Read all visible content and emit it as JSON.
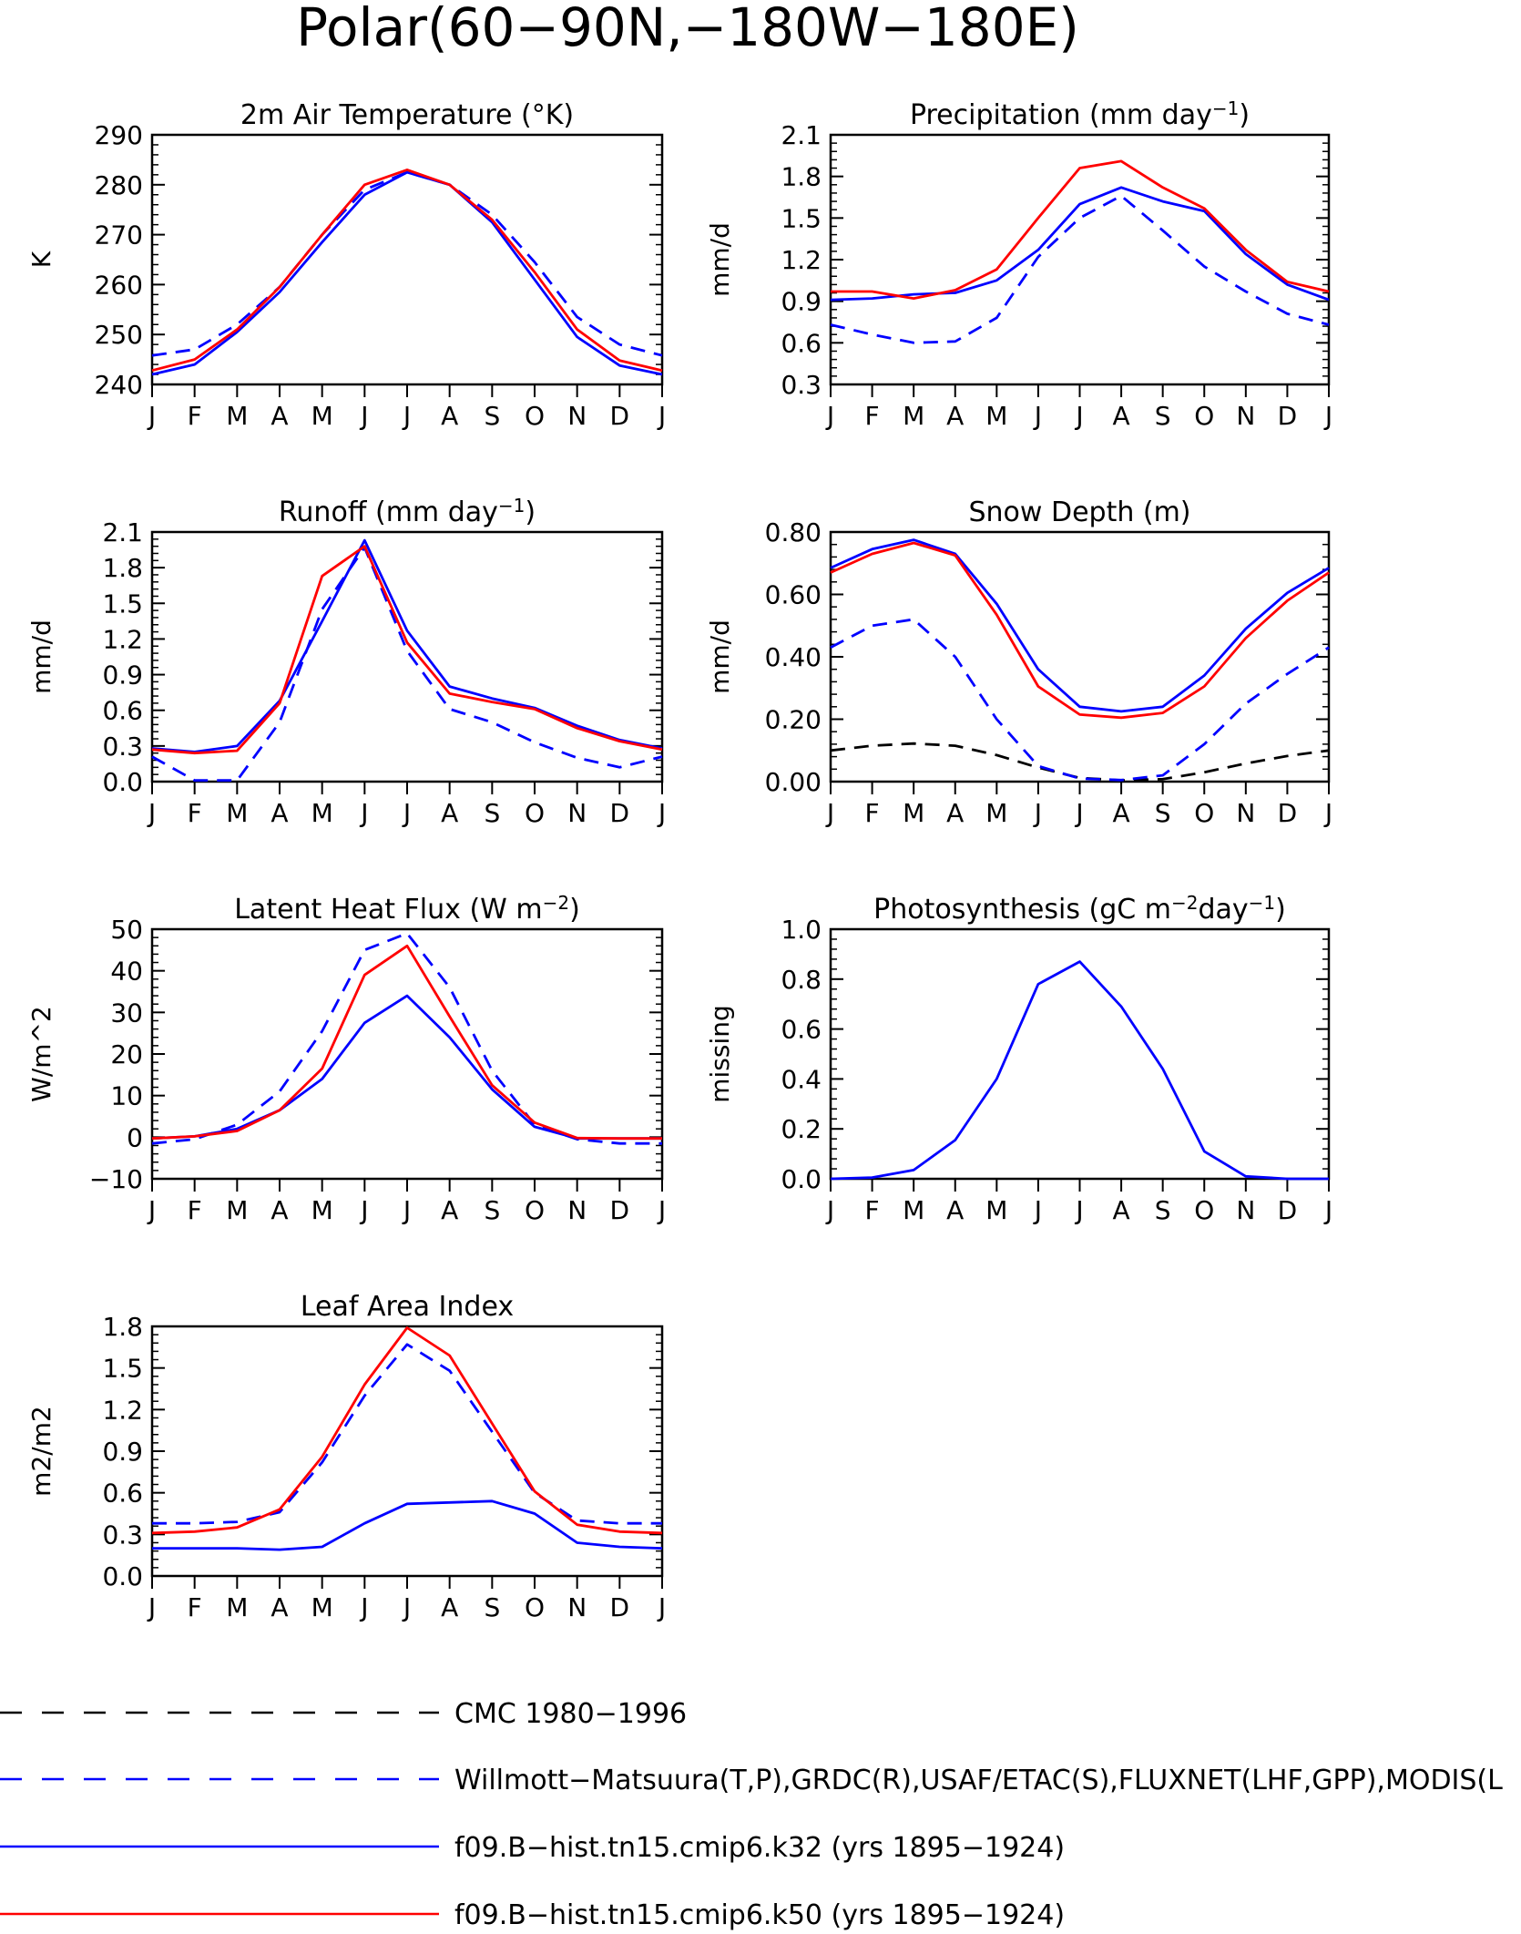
{
  "figure": {
    "title": "Polar(60−90N,−180W−180E)",
    "month_labels": [
      "J",
      "F",
      "M",
      "A",
      "M",
      "J",
      "J",
      "A",
      "S",
      "O",
      "N",
      "D",
      "J"
    ]
  },
  "legend": [
    {
      "label": "CMC 1980−1996",
      "color": "#000000",
      "dash": true
    },
    {
      "label": "Willmott−Matsuura(T,P),GRDC(R),USAF/ETAC(S),FLUXNET(LHF,GPP),MODIS(L",
      "color": "#0000ff",
      "dash": true
    },
    {
      "label": "f09.B−hist.tn15.cmip6.k32 (yrs 1895−1924)",
      "color": "#0000ff",
      "dash": false
    },
    {
      "label": "f09.B−hist.tn15.cmip6.k50 (yrs 1895−1924)",
      "color": "#ff0000",
      "dash": false
    }
  ],
  "chart_data": [
    {
      "type": "line",
      "title": "2m Air Temperature (°K)",
      "ylabel": "K",
      "ylim": [
        240,
        290
      ],
      "yticks": [
        240,
        250,
        260,
        270,
        280,
        290
      ],
      "ytick_labels": [
        "240",
        "250",
        "260",
        "270",
        "280",
        "290"
      ],
      "x": [
        "J",
        "F",
        "M",
        "A",
        "M",
        "J",
        "J",
        "A",
        "S",
        "O",
        "N",
        "D",
        "J"
      ],
      "series": [
        {
          "name": "Willmott−Matsuura(T,P),GRDC(R),USAF/ETAC(S),FLUXNET(LHF,GPP),MODIS(L",
          "color": "#0000ff",
          "dash": true,
          "values": [
            245.8,
            247.0,
            252.0,
            259.5,
            270.0,
            279.0,
            282.5,
            280.0,
            274.0,
            264.5,
            253.5,
            248.0,
            245.8
          ]
        },
        {
          "name": "f09.B−hist.tn15.cmip6.k32 (yrs 1895−1924)",
          "color": "#0000ff",
          "dash": false,
          "values": [
            242.0,
            244.0,
            250.5,
            258.5,
            268.5,
            278.0,
            282.5,
            280.0,
            272.5,
            261.0,
            249.5,
            243.8,
            242.0
          ]
        },
        {
          "name": "f09.B−hist.tn15.cmip6.k50 (yrs 1895−1924)",
          "color": "#ff0000",
          "dash": false,
          "values": [
            242.8,
            245.0,
            251.0,
            259.5,
            270.0,
            280.0,
            283.0,
            280.0,
            273.0,
            262.5,
            251.0,
            244.8,
            242.8
          ]
        }
      ]
    },
    {
      "type": "line",
      "title": "Precipitation (mm day",
      "title_sup": "−1",
      "title_end": ")",
      "ylabel": "mm/d",
      "ylim": [
        0.3,
        2.1
      ],
      "yticks": [
        0.3,
        0.6,
        0.9,
        1.2,
        1.5,
        1.8,
        2.1
      ],
      "ytick_labels": [
        "0.3",
        "0.6",
        "0.9",
        "1.2",
        "1.5",
        "1.8",
        "2.1"
      ],
      "x": [
        "J",
        "F",
        "M",
        "A",
        "M",
        "J",
        "J",
        "A",
        "S",
        "O",
        "N",
        "D",
        "J"
      ],
      "series": [
        {
          "name": "Willmott−Matsuura(T,P),GRDC(R),USAF/ETAC(S),FLUXNET(LHF,GPP),MODIS(L",
          "color": "#0000ff",
          "dash": true,
          "values": [
            0.73,
            0.66,
            0.6,
            0.61,
            0.78,
            1.22,
            1.5,
            1.66,
            1.41,
            1.15,
            0.97,
            0.81,
            0.73
          ]
        },
        {
          "name": "f09.B−hist.tn15.cmip6.k32 (yrs 1895−1924)",
          "color": "#0000ff",
          "dash": false,
          "values": [
            0.91,
            0.92,
            0.95,
            0.96,
            1.05,
            1.27,
            1.6,
            1.72,
            1.62,
            1.55,
            1.24,
            1.02,
            0.91
          ]
        },
        {
          "name": "f09.B−hist.tn15.cmip6.k50 (yrs 1895−1924)",
          "color": "#ff0000",
          "dash": false,
          "values": [
            0.97,
            0.97,
            0.92,
            0.98,
            1.13,
            1.5,
            1.86,
            1.91,
            1.72,
            1.57,
            1.27,
            1.04,
            0.97
          ]
        }
      ]
    },
    {
      "type": "line",
      "title": "Runoff (mm day",
      "title_sup": "−1",
      "title_end": ")",
      "ylabel": "mm/d",
      "ylim": [
        0.0,
        2.1
      ],
      "yticks": [
        0.0,
        0.3,
        0.6,
        0.9,
        1.2,
        1.5,
        1.8,
        2.1
      ],
      "ytick_labels": [
        "0.0",
        "0.3",
        "0.6",
        "0.9",
        "1.2",
        "1.5",
        "1.8",
        "2.1"
      ],
      "x": [
        "J",
        "F",
        "M",
        "A",
        "M",
        "J",
        "J",
        "A",
        "S",
        "O",
        "N",
        "D",
        "J"
      ],
      "series": [
        {
          "name": "Willmott−Matsuura(T,P),GRDC(R),USAF/ETAC(S),FLUXNET(LHF,GPP),MODIS(L",
          "color": "#0000ff",
          "dash": true,
          "values": [
            0.21,
            0.01,
            0.01,
            0.5,
            1.45,
            1.97,
            1.1,
            0.61,
            0.5,
            0.33,
            0.2,
            0.12,
            0.21
          ]
        },
        {
          "name": "f09.B−hist.tn15.cmip6.k32 (yrs 1895−1924)",
          "color": "#0000ff",
          "dash": false,
          "values": [
            0.28,
            0.25,
            0.3,
            0.68,
            1.35,
            2.03,
            1.27,
            0.8,
            0.7,
            0.62,
            0.47,
            0.35,
            0.28
          ]
        },
        {
          "name": "f09.B−hist.tn15.cmip6.k50 (yrs 1895−1924)",
          "color": "#ff0000",
          "dash": false,
          "values": [
            0.27,
            0.24,
            0.26,
            0.66,
            1.73,
            1.98,
            1.17,
            0.74,
            0.67,
            0.61,
            0.45,
            0.34,
            0.27
          ]
        }
      ]
    },
    {
      "type": "line",
      "title": "Snow Depth (m)",
      "ylabel": "mm/d",
      "ylim": [
        0.0,
        0.8
      ],
      "yticks": [
        0.0,
        0.2,
        0.4,
        0.6,
        0.8
      ],
      "ytick_labels": [
        "0.00",
        "0.20",
        "0.40",
        "0.60",
        "0.80"
      ],
      "x": [
        "J",
        "F",
        "M",
        "A",
        "M",
        "J",
        "J",
        "A",
        "S",
        "O",
        "N",
        "D",
        "J"
      ],
      "series": [
        {
          "name": "CMC 1980−1996",
          "color": "#000000",
          "dash": true,
          "values": [
            0.1,
            0.115,
            0.122,
            0.115,
            0.085,
            0.045,
            0.012,
            0.004,
            0.008,
            0.03,
            0.058,
            0.082,
            0.1
          ]
        },
        {
          "name": "Willmott−Matsuura(T,P),GRDC(R),USAF/ETAC(S),FLUXNET(LHF,GPP),MODIS(L",
          "color": "#0000ff",
          "dash": true,
          "values": [
            0.43,
            0.5,
            0.52,
            0.4,
            0.2,
            0.05,
            0.01,
            0.005,
            0.02,
            0.12,
            0.25,
            0.345,
            0.43
          ]
        },
        {
          "name": "f09.B−hist.tn15.cmip6.k32 (yrs 1895−1924)",
          "color": "#0000ff",
          "dash": false,
          "values": [
            0.685,
            0.745,
            0.775,
            0.73,
            0.57,
            0.36,
            0.24,
            0.225,
            0.24,
            0.34,
            0.49,
            0.605,
            0.685
          ]
        },
        {
          "name": "f09.B−hist.tn15.cmip6.k50 (yrs 1895−1924)",
          "color": "#ff0000",
          "dash": false,
          "values": [
            0.67,
            0.73,
            0.765,
            0.725,
            0.535,
            0.305,
            0.215,
            0.205,
            0.22,
            0.305,
            0.46,
            0.58,
            0.67
          ]
        }
      ]
    },
    {
      "type": "line",
      "title": "Latent Heat Flux (W m",
      "title_sup": "−2",
      "title_end": ")",
      "ylabel": "W/m^2",
      "ylim": [
        -10,
        50
      ],
      "yticks": [
        -10,
        0,
        10,
        20,
        30,
        40,
        50
      ],
      "ytick_labels": [
        "−10",
        "0",
        "10",
        "20",
        "30",
        "40",
        "50"
      ],
      "x": [
        "J",
        "F",
        "M",
        "A",
        "M",
        "J",
        "J",
        "A",
        "S",
        "O",
        "N",
        "D",
        "J"
      ],
      "series": [
        {
          "name": "Willmott−Matsuura(T,P),GRDC(R),USAF/ETAC(S),FLUXNET(LHF,GPP),MODIS(L",
          "color": "#0000ff",
          "dash": true,
          "values": [
            -1.5,
            -0.5,
            3.0,
            11.0,
            25.5,
            45.0,
            49.0,
            36.0,
            16.0,
            3.0,
            -0.5,
            -1.5,
            -1.5
          ]
        },
        {
          "name": "f09.B−hist.tn15.cmip6.k32 (yrs 1895−1924)",
          "color": "#0000ff",
          "dash": false,
          "values": [
            -0.3,
            0.2,
            2.0,
            6.5,
            14.0,
            27.5,
            34.0,
            24.0,
            11.5,
            2.5,
            -0.3,
            -0.3,
            -0.3
          ]
        },
        {
          "name": "f09.B−hist.tn15.cmip6.k50 (yrs 1895−1924)",
          "color": "#ff0000",
          "dash": false,
          "values": [
            -0.3,
            0.2,
            1.5,
            6.5,
            16.5,
            39.0,
            46.0,
            29.0,
            12.5,
            3.5,
            -0.2,
            -0.3,
            -0.3
          ]
        }
      ]
    },
    {
      "type": "line",
      "title": "Photosynthesis (gC m",
      "title_sup": "−2",
      "title_mid": "day",
      "title_sup2": "−1",
      "title_end": ")",
      "ylabel": "missing",
      "ylim": [
        0.0,
        1.0
      ],
      "yticks": [
        0.0,
        0.2,
        0.4,
        0.6,
        0.8,
        1.0
      ],
      "ytick_labels": [
        "0.0",
        "0.2",
        "0.4",
        "0.6",
        "0.8",
        "1.0"
      ],
      "x": [
        "J",
        "F",
        "M",
        "A",
        "M",
        "J",
        "J",
        "A",
        "S",
        "O",
        "N",
        "D",
        "J"
      ],
      "series": [
        {
          "name": "f09.B−hist.tn15.cmip6.k32 (yrs 1895−1924)",
          "color": "#0000ff",
          "dash": false,
          "values": [
            0.0,
            0.005,
            0.035,
            0.155,
            0.4,
            0.78,
            0.87,
            0.69,
            0.44,
            0.11,
            0.01,
            0.0,
            0.0
          ]
        }
      ]
    },
    {
      "type": "line",
      "title": "Leaf Area Index",
      "ylabel": "m2/m2",
      "ylim": [
        0.0,
        1.8
      ],
      "yticks": [
        0.0,
        0.3,
        0.6,
        0.9,
        1.2,
        1.5,
        1.8
      ],
      "ytick_labels": [
        "0.0",
        "0.3",
        "0.6",
        "0.9",
        "1.2",
        "1.5",
        "1.8"
      ],
      "x": [
        "J",
        "F",
        "M",
        "A",
        "M",
        "J",
        "J",
        "A",
        "S",
        "O",
        "N",
        "D",
        "J"
      ],
      "series": [
        {
          "name": "Willmott−Matsuura(T,P),GRDC(R),USAF/ETAC(S),FLUXNET(LHF,GPP),MODIS(L",
          "color": "#0000ff",
          "dash": true,
          "values": [
            0.38,
            0.38,
            0.39,
            0.46,
            0.82,
            1.3,
            1.67,
            1.48,
            1.04,
            0.6,
            0.4,
            0.38,
            0.38
          ]
        },
        {
          "name": "f09.B−hist.tn15.cmip6.k32 (yrs 1895−1924)",
          "color": "#0000ff",
          "dash": false,
          "values": [
            0.2,
            0.2,
            0.2,
            0.19,
            0.21,
            0.38,
            0.52,
            0.53,
            0.54,
            0.45,
            0.24,
            0.21,
            0.2
          ]
        },
        {
          "name": "f09.B−hist.tn15.cmip6.k50 (yrs 1895−1924)",
          "color": "#ff0000",
          "dash": false,
          "values": [
            0.31,
            0.32,
            0.35,
            0.48,
            0.86,
            1.38,
            1.79,
            1.59,
            1.1,
            0.61,
            0.37,
            0.32,
            0.31
          ]
        }
      ]
    }
  ]
}
